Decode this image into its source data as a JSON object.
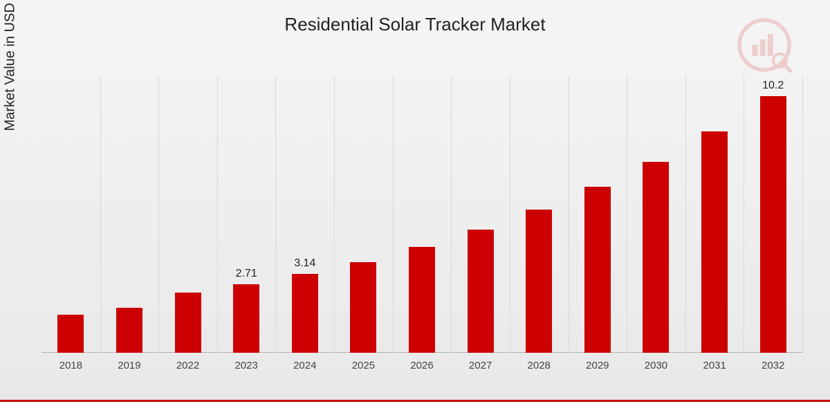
{
  "title": "Residential Solar Tracker Market",
  "ylabel": "Market Value in USD Billion",
  "chart": {
    "type": "bar",
    "categories": [
      "2018",
      "2019",
      "2022",
      "2023",
      "2024",
      "2025",
      "2026",
      "2027",
      "2028",
      "2029",
      "2030",
      "2031",
      "2032"
    ],
    "values": [
      1.5,
      1.8,
      2.4,
      2.71,
      3.14,
      3.6,
      4.2,
      4.9,
      5.7,
      6.6,
      7.6,
      8.8,
      10.2
    ],
    "value_labels": {
      "2023": "2.71",
      "2024": "3.14",
      "2032": "10.2"
    },
    "bar_color": "#cc0000",
    "bar_width_ratio": 0.45,
    "grid_color": "#d8d8d8",
    "background_gradient": [
      "#f5f5f5",
      "#e8e8e8"
    ],
    "ymax_visual": 11,
    "title_fontsize": 26,
    "ylabel_fontsize": 20,
    "xlabel_fontsize": 15,
    "value_label_fontsize": 16,
    "accent_strip_color": "#cc0000",
    "logo_color": "#cc0000"
  }
}
